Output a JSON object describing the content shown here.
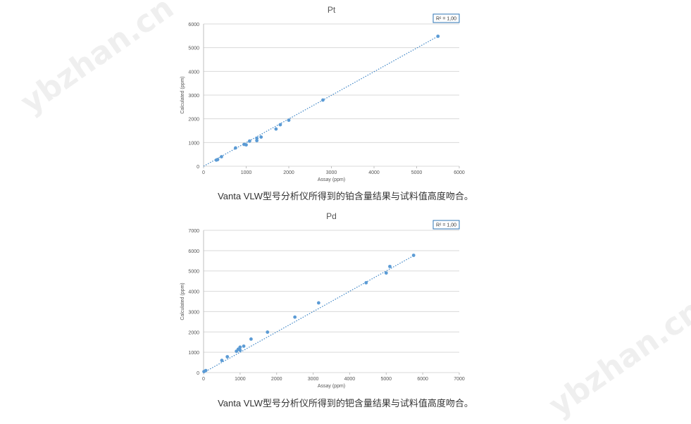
{
  "watermark": "ybzhan.cn",
  "captions": [
    "Vanta VLW型号分析仪所得到的铂含量结果与试料值高度吻合。",
    "Vanta VLW型号分析仪所得到的钯含量结果与试料值高度吻合。"
  ],
  "colors": {
    "point": "#5b9bd5",
    "trend": "#3d85c6",
    "grid": "#d9d9d9"
  },
  "chart_data": [
    {
      "type": "scatter",
      "title": "Pt",
      "xlabel": "Assay (ppm)",
      "ylabel": "Calculated (ppm)",
      "r2_label": "R² = 1,00",
      "xlim": [
        0,
        6000
      ],
      "ylim": [
        0,
        6000
      ],
      "xticks": [
        0,
        1000,
        2000,
        3000,
        4000,
        5000,
        6000
      ],
      "yticks": [
        0,
        1000,
        2000,
        3000,
        4000,
        5000,
        6000
      ],
      "trendline": [
        [
          0,
          0
        ],
        [
          5500,
          5480
        ]
      ],
      "points": [
        [
          300,
          260
        ],
        [
          330,
          280
        ],
        [
          420,
          400
        ],
        [
          750,
          770
        ],
        [
          950,
          920
        ],
        [
          1000,
          900
        ],
        [
          1080,
          1060
        ],
        [
          1250,
          1080
        ],
        [
          1250,
          1180
        ],
        [
          1350,
          1230
        ],
        [
          1700,
          1570
        ],
        [
          1800,
          1750
        ],
        [
          2000,
          1940
        ],
        [
          2800,
          2790
        ],
        [
          5500,
          5480
        ]
      ]
    },
    {
      "type": "scatter",
      "title": "Pd",
      "xlabel": "Assay (ppm)",
      "ylabel": "Calculated (ppm)",
      "r2_label": "R² = 1,00",
      "xlim": [
        0,
        7000
      ],
      "ylim": [
        0,
        7000
      ],
      "xticks": [
        0,
        1000,
        2000,
        3000,
        4000,
        5000,
        6000,
        7000
      ],
      "yticks": [
        0,
        1000,
        2000,
        3000,
        4000,
        5000,
        6000,
        7000
      ],
      "trendline": [
        [
          0,
          0
        ],
        [
          5750,
          5750
        ]
      ],
      "points": [
        [
          10,
          50
        ],
        [
          60,
          100
        ],
        [
          500,
          600
        ],
        [
          650,
          780
        ],
        [
          900,
          1050
        ],
        [
          950,
          1150
        ],
        [
          1000,
          1250
        ],
        [
          1000,
          1100
        ],
        [
          1100,
          1300
        ],
        [
          1300,
          1650
        ],
        [
          1750,
          1990
        ],
        [
          2500,
          2730
        ],
        [
          3150,
          3430
        ],
        [
          4450,
          4420
        ],
        [
          5000,
          4900
        ],
        [
          5100,
          5220
        ],
        [
          5750,
          5770
        ]
      ]
    }
  ]
}
